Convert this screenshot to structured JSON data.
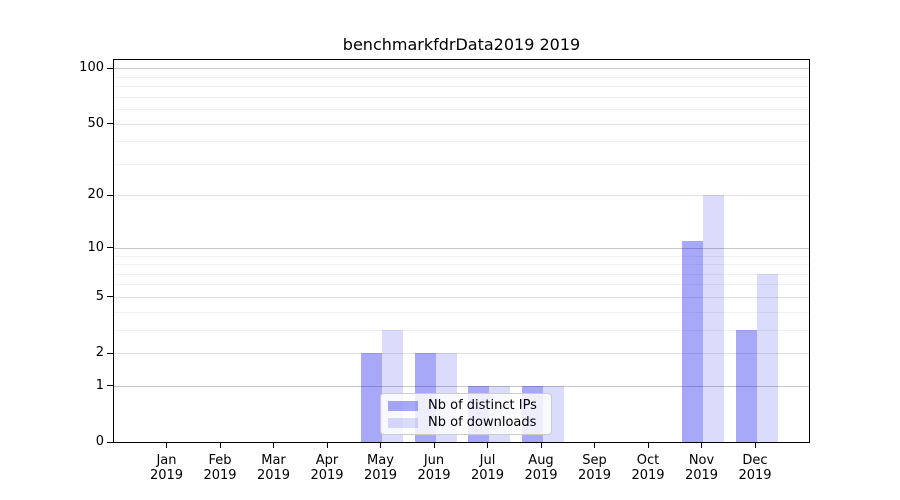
{
  "chart": {
    "title": "benchmarkfdrData2019 2019"
  },
  "chart_data": {
    "type": "bar",
    "title": "benchmarkfdrData2019 2019",
    "categories": [
      "Jan 2019",
      "Feb 2019",
      "Mar 2019",
      "Apr 2019",
      "May 2019",
      "Jun 2019",
      "Jul 2019",
      "Aug 2019",
      "Sep 2019",
      "Oct 2019",
      "Nov 2019",
      "Dec 2019"
    ],
    "series": [
      {
        "name": "Nb of distinct IPs",
        "values": [
          0,
          0,
          0,
          0,
          2,
          2,
          1,
          1,
          0,
          0,
          11,
          3
        ]
      },
      {
        "name": "Nb of downloads",
        "values": [
          0,
          0,
          0,
          0,
          3,
          2,
          1,
          1,
          0,
          0,
          20,
          7
        ]
      }
    ],
    "xlabel": "",
    "ylabel": "",
    "yscale": "log1p",
    "ylim": [
      0,
      112
    ],
    "yticks_labeled": [
      0,
      1,
      2,
      5,
      10,
      20,
      50,
      100
    ],
    "yticks_minor": [
      3,
      4,
      6,
      7,
      8,
      9,
      30,
      40,
      60,
      70,
      80,
      90
    ],
    "grid": true,
    "legend_position": "lower center inside"
  },
  "axes": {
    "y": {
      "ticks": [
        {
          "value": 100,
          "label": "100",
          "grid": "major"
        },
        {
          "value": 50,
          "label": "50",
          "grid": "mid"
        },
        {
          "value": 20,
          "label": "20",
          "grid": "mid"
        },
        {
          "value": 10,
          "label": "10",
          "grid": "major"
        },
        {
          "value": 5,
          "label": "5",
          "grid": "mid"
        },
        {
          "value": 2,
          "label": "2",
          "grid": "mid"
        },
        {
          "value": 1,
          "label": "1",
          "grid": "major"
        },
        {
          "value": 0,
          "label": "0",
          "grid": "none"
        }
      ]
    },
    "x": {
      "ticks": [
        {
          "month": "Jan",
          "year": "2019"
        },
        {
          "month": "Feb",
          "year": "2019"
        },
        {
          "month": "Mar",
          "year": "2019"
        },
        {
          "month": "Apr",
          "year": "2019"
        },
        {
          "month": "May",
          "year": "2019"
        },
        {
          "month": "Jun",
          "year": "2019"
        },
        {
          "month": "Jul",
          "year": "2019"
        },
        {
          "month": "Aug",
          "year": "2019"
        },
        {
          "month": "Sep",
          "year": "2019"
        },
        {
          "month": "Oct",
          "year": "2019"
        },
        {
          "month": "Nov",
          "year": "2019"
        },
        {
          "month": "Dec",
          "year": "2019"
        }
      ]
    }
  },
  "legend": {
    "items": [
      {
        "label": "Nb of distinct IPs",
        "series": "ips"
      },
      {
        "label": "Nb of downloads",
        "series": "downloads"
      }
    ]
  },
  "colors": {
    "ips_bar": "rgba(0,0,235,0.34)",
    "downloads_bar": "rgba(0,0,235,0.14)",
    "grid_major": "#c8c8c8",
    "grid_mid": "#e2e2e2",
    "grid_minor": "#f1f1f1",
    "spine": "#000000",
    "legend_border": "#cccccc"
  }
}
